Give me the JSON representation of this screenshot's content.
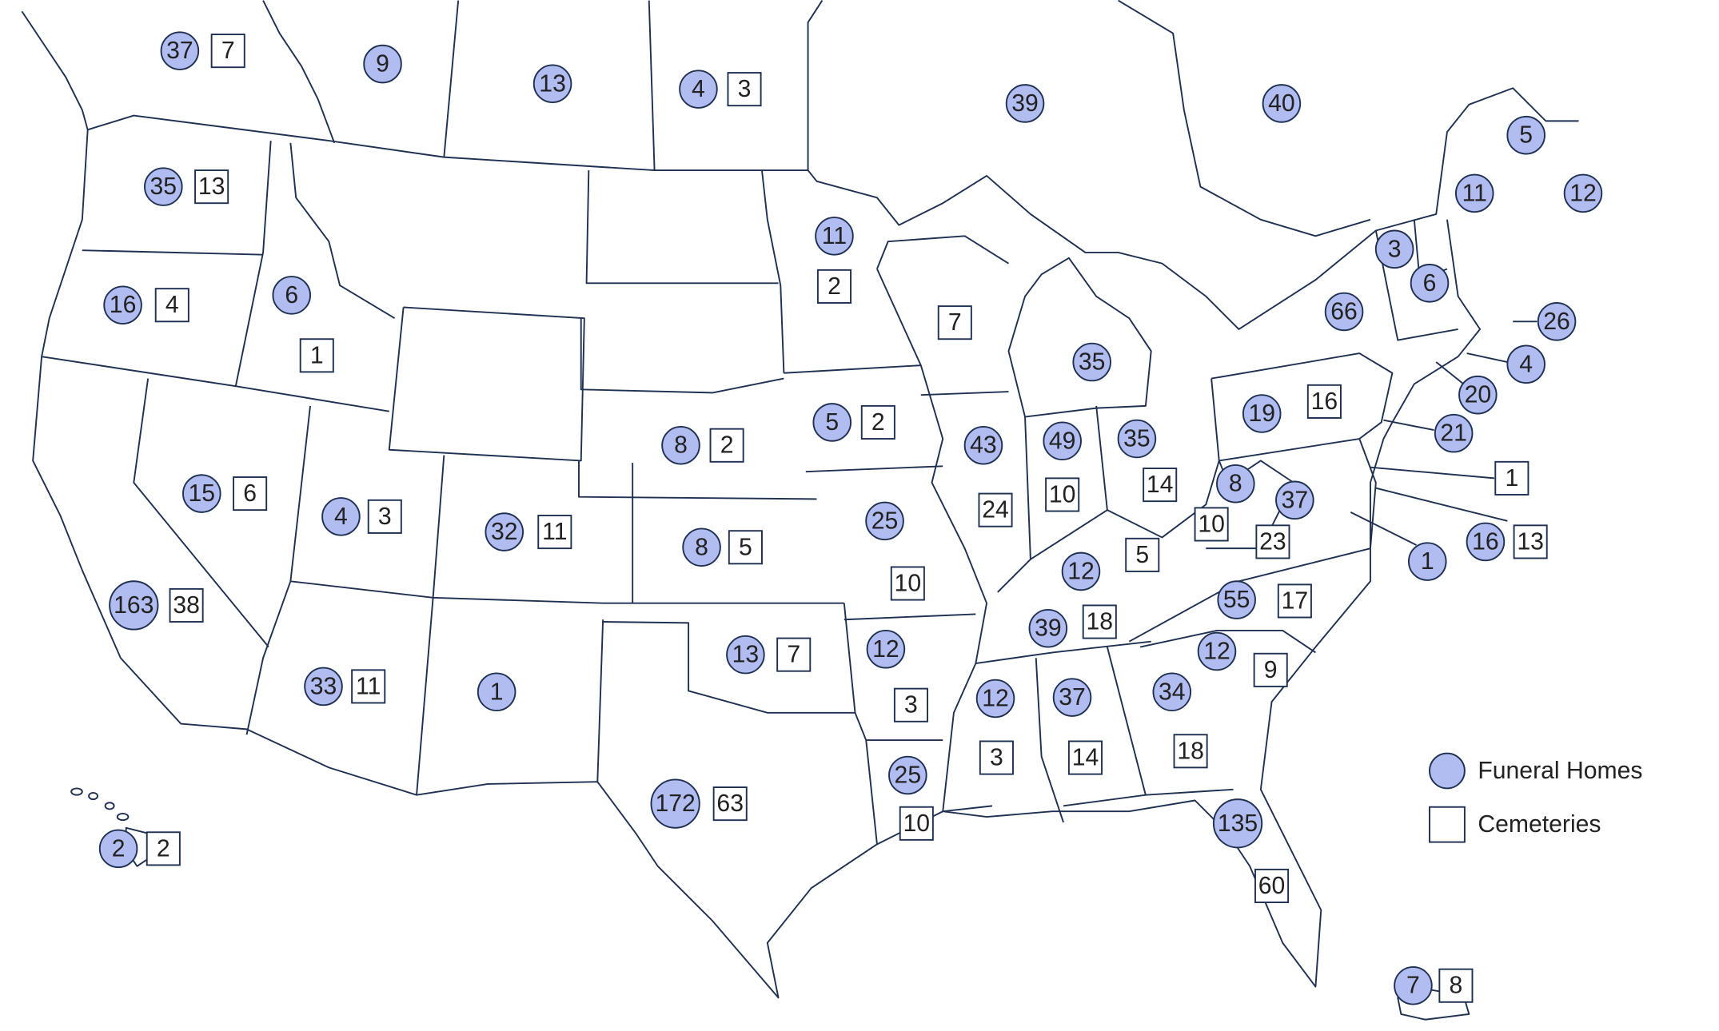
{
  "legend": {
    "funeral_homes_label": "Funeral Homes",
    "cemeteries_label": "Cemeteries",
    "funeral_homes_color": "#b1bdf0",
    "cemeteries_color": "#ffffff",
    "outline_color": "#1f3152"
  },
  "markers": [
    {
      "funeral_homes": "37",
      "cemeteries": "7"
    },
    {
      "funeral_homes": "9"
    },
    {
      "funeral_homes": "13"
    },
    {
      "funeral_homes": "4",
      "cemeteries": "3"
    },
    {
      "funeral_homes": "39"
    },
    {
      "funeral_homes": "40"
    },
    {
      "funeral_homes": "5"
    },
    {
      "funeral_homes": "11"
    },
    {
      "funeral_homes": "12"
    },
    {
      "funeral_homes": "35",
      "cemeteries": "13"
    },
    {
      "funeral_homes": "16",
      "cemeteries": "4"
    },
    {
      "funeral_homes": "6",
      "cemeteries": "1"
    },
    {
      "funeral_homes": "11",
      "cemeteries": "2"
    },
    {
      "cemeteries": "7"
    },
    {
      "funeral_homes": "35"
    },
    {
      "funeral_homes": "3"
    },
    {
      "funeral_homes": "6"
    },
    {
      "funeral_homes": "66"
    },
    {
      "funeral_homes": "26"
    },
    {
      "funeral_homes": "4"
    },
    {
      "funeral_homes": "20"
    },
    {
      "funeral_homes": "21"
    },
    {
      "funeral_homes": "19",
      "cemeteries": "16"
    },
    {
      "funeral_homes": "5",
      "cemeteries": "2"
    },
    {
      "funeral_homes": "8",
      "cemeteries": "2"
    },
    {
      "funeral_homes": "43",
      "cemeteries": "24"
    },
    {
      "funeral_homes": "49",
      "cemeteries": "10"
    },
    {
      "funeral_homes": "35",
      "cemeteries": "14"
    },
    {
      "cemeteries": "1"
    },
    {
      "funeral_homes": "8",
      "cemeteries": "10"
    },
    {
      "funeral_homes": "37",
      "cemeteries": "23"
    },
    {
      "funeral_homes": "16",
      "cemeteries": "13"
    },
    {
      "funeral_homes": "1"
    },
    {
      "funeral_homes": "15",
      "cemeteries": "6"
    },
    {
      "funeral_homes": "4",
      "cemeteries": "3"
    },
    {
      "funeral_homes": "32",
      "cemeteries": "11"
    },
    {
      "funeral_homes": "8",
      "cemeteries": "5"
    },
    {
      "funeral_homes": "25",
      "cemeteries": "10"
    },
    {
      "funeral_homes": "12",
      "cemeteries": "5"
    },
    {
      "funeral_homes": "163",
      "cemeteries": "38"
    },
    {
      "funeral_homes": "55",
      "cemeteries": "17"
    },
    {
      "funeral_homes": "39",
      "cemeteries": "18"
    },
    {
      "funeral_homes": "13",
      "cemeteries": "7"
    },
    {
      "funeral_homes": "12",
      "cemeteries": "3"
    },
    {
      "funeral_homes": "12",
      "cemeteries": "9"
    },
    {
      "funeral_homes": "33",
      "cemeteries": "11"
    },
    {
      "funeral_homes": "1"
    },
    {
      "funeral_homes": "12",
      "cemeteries": "3"
    },
    {
      "funeral_homes": "37",
      "cemeteries": "14"
    },
    {
      "funeral_homes": "34",
      "cemeteries": "18"
    },
    {
      "funeral_homes": "25",
      "cemeteries": "10"
    },
    {
      "funeral_homes": "172",
      "cemeteries": "63"
    },
    {
      "funeral_homes": "135",
      "cemeteries": "60"
    },
    {
      "funeral_homes": "2",
      "cemeteries": "2"
    },
    {
      "funeral_homes": "7",
      "cemeteries": "8"
    }
  ]
}
